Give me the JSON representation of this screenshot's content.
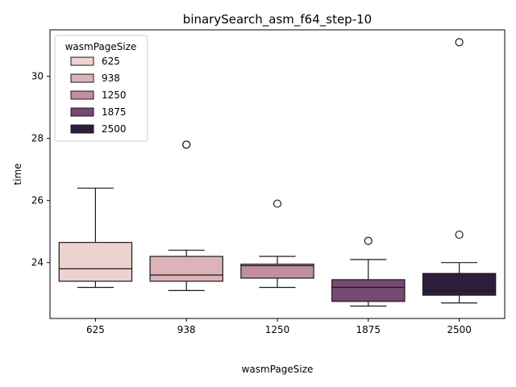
{
  "chart_data": {
    "type": "box",
    "title": "binarySearch_asm_f64_step-10",
    "xlabel": "wasmPageSize",
    "ylabel": "time",
    "ylim": [
      22.2,
      31.5
    ],
    "yticks": [
      24,
      26,
      28,
      30
    ],
    "categories": [
      "625",
      "938",
      "1250",
      "1875",
      "2500"
    ],
    "legend": {
      "title": "wasmPageSize",
      "placement": "upper-left",
      "entries": [
        "625",
        "938",
        "1250",
        "1875",
        "2500"
      ]
    },
    "boxes": [
      {
        "category": "625",
        "color": "#ecd3d0",
        "whisker_low": 23.2,
        "q1": 23.4,
        "median": 23.8,
        "q3": 24.65,
        "whisker_high": 26.4,
        "outliers": []
      },
      {
        "category": "938",
        "color": "#dbb3b8",
        "whisker_low": 23.1,
        "q1": 23.4,
        "median": 23.6,
        "q3": 24.2,
        "whisker_high": 24.4,
        "outliers": [
          27.8,
          27.8
        ]
      },
      {
        "category": "1250",
        "color": "#c28fa1",
        "whisker_low": 23.2,
        "q1": 23.5,
        "median": 23.9,
        "q3": 23.95,
        "whisker_high": 24.2,
        "outliers": [
          25.9
        ]
      },
      {
        "category": "1875",
        "color": "#774974",
        "whisker_low": 22.6,
        "q1": 22.75,
        "median": 23.2,
        "q3": 23.45,
        "whisker_high": 24.1,
        "outliers": [
          24.7
        ]
      },
      {
        "category": "2500",
        "color": "#2d1e3e",
        "whisker_low": 22.7,
        "q1": 22.95,
        "median": 23.1,
        "q3": 23.65,
        "whisker_high": 24.0,
        "outliers": [
          24.9,
          31.1
        ]
      }
    ]
  }
}
